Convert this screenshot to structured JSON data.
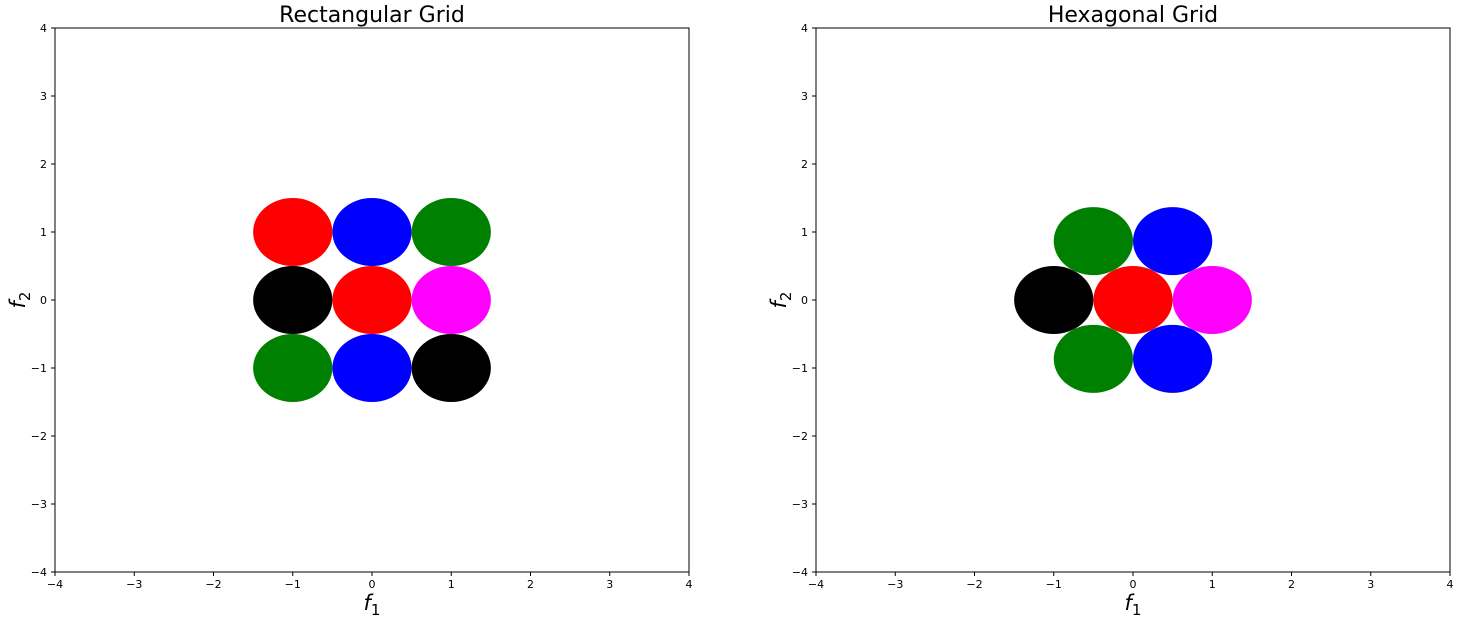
{
  "chart_data": [
    {
      "type": "scatter",
      "title": "Rectangular Grid",
      "xlabel": "f_1",
      "ylabel": "f_2",
      "xlim": [
        -4,
        4
      ],
      "ylim": [
        -4,
        4
      ],
      "xticks": [
        "−4",
        "−3",
        "−2",
        "−1",
        "0",
        "1",
        "2",
        "3",
        "4"
      ],
      "yticks": [
        "−4",
        "−3",
        "−2",
        "−1",
        "0",
        "1",
        "2",
        "3",
        "4"
      ],
      "marker_radius": 0.5,
      "grid": false,
      "points": [
        {
          "x": -1,
          "y": 1,
          "color": "#ff0000"
        },
        {
          "x": 0,
          "y": 1,
          "color": "#0000ff"
        },
        {
          "x": 1,
          "y": 1,
          "color": "#008000"
        },
        {
          "x": -1,
          "y": 0,
          "color": "#000000"
        },
        {
          "x": 0,
          "y": 0,
          "color": "#ff0000"
        },
        {
          "x": 1,
          "y": 0,
          "color": "#ff00ff"
        },
        {
          "x": -1,
          "y": -1,
          "color": "#008000"
        },
        {
          "x": 0,
          "y": -1,
          "color": "#0000ff"
        },
        {
          "x": 1,
          "y": -1,
          "color": "#000000"
        }
      ]
    },
    {
      "type": "scatter",
      "title": "Hexagonal Grid",
      "xlabel": "f_1",
      "ylabel": "f_2",
      "xlim": [
        -4,
        4
      ],
      "ylim": [
        -4,
        4
      ],
      "xticks": [
        "−4",
        "−3",
        "−2",
        "−1",
        "0",
        "1",
        "2",
        "3",
        "4"
      ],
      "yticks": [
        "−4",
        "−3",
        "−2",
        "−1",
        "0",
        "1",
        "2",
        "3",
        "4"
      ],
      "marker_radius": 0.5,
      "grid": false,
      "points": [
        {
          "x": -0.5,
          "y": 0.866,
          "color": "#008000"
        },
        {
          "x": 0.5,
          "y": 0.866,
          "color": "#0000ff"
        },
        {
          "x": -1,
          "y": 0,
          "color": "#000000"
        },
        {
          "x": 0,
          "y": 0,
          "color": "#ff0000"
        },
        {
          "x": 1,
          "y": 0,
          "color": "#ff00ff"
        },
        {
          "x": -0.5,
          "y": -0.866,
          "color": "#008000"
        },
        {
          "x": 0.5,
          "y": -0.866,
          "color": "#0000ff"
        }
      ]
    }
  ]
}
